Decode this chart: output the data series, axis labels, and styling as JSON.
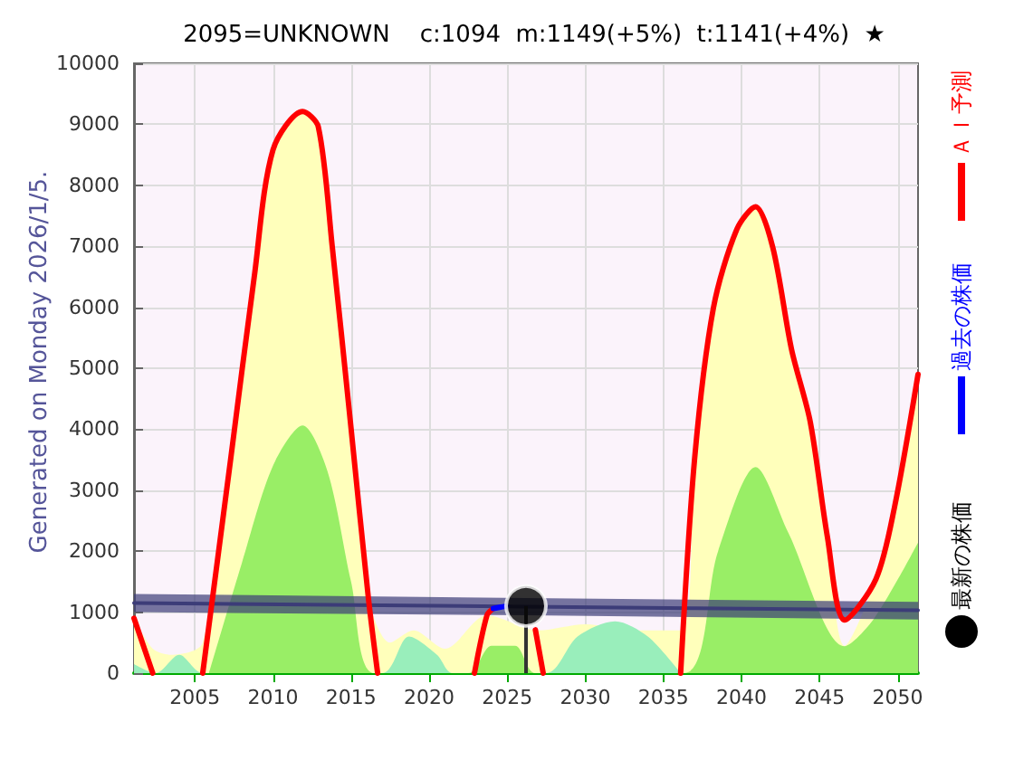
{
  "chart_data": {
    "type": "line",
    "title": "2095=UNKNOWN    c:1094  m:1149(+5%)  t:1141(+4%)  ★",
    "annotations": [
      "Generated on Monday 2026/1/5."
    ],
    "xlim": [
      2001.1,
      2051.3
    ],
    "xticks": [
      2005,
      2010,
      2015,
      2020,
      2025,
      2030,
      2035,
      2040,
      2045,
      2050
    ],
    "ylim": [
      0,
      10000
    ],
    "yticks": [
      0,
      1000,
      2000,
      3000,
      4000,
      5000,
      6000,
      7000,
      8000,
      9000,
      10000
    ],
    "grid": true,
    "legend": "right",
    "line_style": "solid",
    "series": [
      {
        "type": "area",
        "color": "#ffffbb",
        "x": [
          2001.1,
          2002.3,
          2003.5,
          2005.5,
          2007.3,
          2008.8,
          2010.0,
          2011.9,
          2012.9,
          2013.8,
          2015.0,
          2016.1,
          2017.5,
          2019.0,
          2021.0,
          2023.7,
          2027.0,
          2030.0,
          2033.0,
          2036.1,
          2037.0,
          2038.2,
          2039.7,
          2040.9,
          2042.0,
          2043.2,
          2044.4,
          2045.5,
          2046.6,
          2048.6,
          2049.8,
          2051.3
        ],
        "values": [
          900,
          400,
          300,
          500,
          3600,
          6500,
          8580,
          9210,
          8960,
          6980,
          4010,
          1250,
          500,
          700,
          400,
          950,
          700,
          800,
          700,
          700,
          3530,
          5990,
          7280,
          7650,
          6980,
          5310,
          4120,
          2230,
          450,
          1540,
          2730,
          4900
        ]
      },
      {
        "type": "area",
        "color": "#99eebb",
        "x": [
          2001.1,
          2002.5,
          2004.0,
          2005.5,
          2017.0,
          2018.7,
          2020.5,
          2021.5,
          2027.5,
          2029.5,
          2031.9,
          2034.0,
          2036.1
        ],
        "values": [
          150,
          0,
          300,
          0,
          0,
          600,
          300,
          0,
          0,
          600,
          850,
          600,
          0
        ]
      },
      {
        "type": "area",
        "color": "#99ee66",
        "x": [
          2005.9,
          2008.0,
          2010.0,
          2011.9,
          2013.5,
          2015.0,
          2016.5,
          2022.5,
          2024.0,
          2025.5,
          2026.8,
          2036.3,
          2038.5,
          2040.9,
          2043.0,
          2046.6,
          2048.5,
          2051.3
        ],
        "values": [
          0,
          1800,
          3400,
          4060,
          3300,
          1500,
          0,
          0,
          450,
          450,
          0,
          0,
          2000,
          3380,
          2300,
          440,
          900,
          2140
        ]
      },
      {
        "color": "#3c3c78",
        "x": [
          2001.1,
          2026.2,
          2051.3
        ],
        "values": [
          1150,
          1090,
          1030
        ],
        "lower": [
          1000,
          950,
          880
        ],
        "upper": [
          1300,
          1230,
          1170
        ]
      },
      {
        "name": "ＡＩ予測",
        "color": "#ff0000",
        "marker": "none",
        "x": [
          2001.1,
          2002.3,
          null,
          2005.5,
          2007.3,
          2008.8,
          2010.0,
          2011.9,
          2012.9,
          2013.8,
          2015.0,
          2016.1,
          2016.7,
          null,
          2022.9,
          2023.7,
          2024.1,
          null,
          2026.8,
          2027.3,
          null,
          2036.1,
          2037.0,
          2038.2,
          2039.7,
          2040.9,
          2042.0,
          2043.2,
          2044.4,
          2045.5,
          2046.6,
          2048.6,
          2049.8,
          2051.3
        ],
        "values": [
          900,
          0,
          null,
          0,
          3530,
          6500,
          8580,
          9210,
          8960,
          6980,
          4010,
          1250,
          0,
          null,
          0,
          950,
          1060,
          null,
          710,
          0,
          null,
          0,
          3530,
          5990,
          7280,
          7650,
          6980,
          5310,
          4120,
          2230,
          870,
          1540,
          2730,
          4900
        ]
      },
      {
        "name": "過去の株価",
        "color": "#0000ff",
        "marker": "none",
        "x": [
          2024.1,
          2024.5,
          2025.0
        ],
        "values": [
          1060,
          1080,
          1100
        ]
      },
      {
        "type": "lollipop",
        "name": "最新の株価",
        "color": "#000000",
        "marker": "circle",
        "x": [
          2026.2
        ],
        "values": [
          1100
        ]
      }
    ]
  }
}
